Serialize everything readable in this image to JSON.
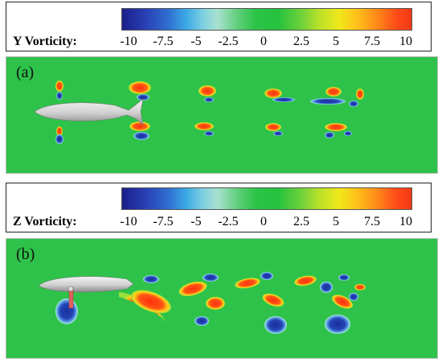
{
  "colorbars": [
    {
      "title": "Y Vorticity:",
      "ticks": [
        "-10",
        "-7.5",
        "-5",
        "-2.5",
        "0",
        "2.5",
        "5",
        "7.5",
        "10"
      ]
    },
    {
      "title": "Z Vorticity:",
      "ticks": [
        "-10",
        "-7.5",
        "-5",
        "-2.5",
        "0",
        "2.5",
        "5",
        "7.5",
        "10"
      ]
    }
  ],
  "panels": [
    {
      "label": "(a)"
    },
    {
      "label": "(b)"
    }
  ],
  "colors": {
    "background_field": "#2ec24a",
    "positive_vortex": "#ff3c12",
    "positive_edge": "#ffd21a",
    "negative_vortex": "#1f3aa8",
    "negative_edge": "#7fd0ff",
    "body": "#d9d9d9"
  }
}
